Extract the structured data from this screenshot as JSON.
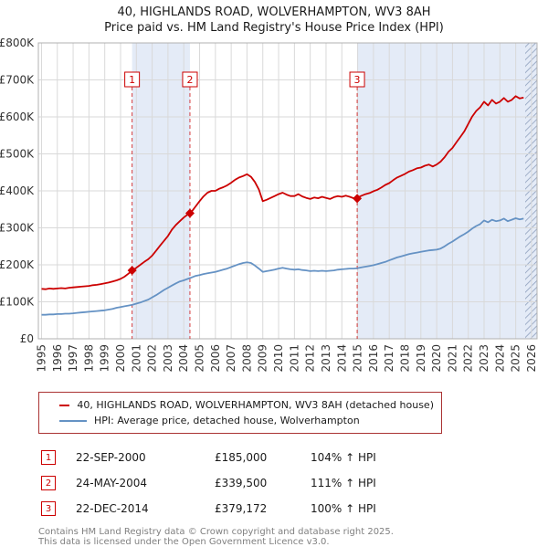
{
  "title": "40, HIGHLANDS ROAD, WOLVERHAMPTON, WV3 8AH",
  "subtitle": "Price paid vs. HM Land Registry's House Price Index (HPI)",
  "chart_data": {
    "type": "line",
    "xlim": [
      1994.8,
      2026.35
    ],
    "ylim": [
      0,
      800
    ],
    "value_unit": "GBP thousands",
    "x_start": 1995.0,
    "x_step": 0.25,
    "xticks": [
      1995,
      1996,
      1997,
      1998,
      1999,
      2000,
      2001,
      2002,
      2003,
      2004,
      2005,
      2006,
      2007,
      2008,
      2009,
      2010,
      2011,
      2012,
      2013,
      2014,
      2015,
      2016,
      2017,
      2018,
      2019,
      2020,
      2021,
      2022,
      2023,
      2024,
      2025,
      2026
    ],
    "yticks": [
      {
        "v": 0,
        "label": "£0"
      },
      {
        "v": 100,
        "label": "£100K"
      },
      {
        "v": 200,
        "label": "£200K"
      },
      {
        "v": 300,
        "label": "£300K"
      },
      {
        "v": 400,
        "label": "£400K"
      },
      {
        "v": 500,
        "label": "£500K"
      },
      {
        "v": 600,
        "label": "£600K"
      },
      {
        "v": 700,
        "label": "£700K"
      },
      {
        "v": 800,
        "label": "£800K"
      }
    ],
    "colors": {
      "price_line": "#cc0000",
      "hpi_line": "#6592c4",
      "shade": "#e4ebf7",
      "grid": "#d9d9d9",
      "border": "#b0b0b0"
    },
    "shaded_regions": [
      [
        2000.73,
        2004.39
      ],
      [
        2014.97,
        2026.35
      ]
    ],
    "hatched_region": [
      2025.6,
      2026.35
    ],
    "series": [
      {
        "name": "40, HIGHLANDS ROAD, WOLVERHAMPTON, WV3 8AH (detached house)",
        "color": "#cc0000",
        "values": [
          135,
          134,
          136,
          135,
          136,
          137,
          136,
          138,
          139,
          140,
          141,
          142,
          143,
          145,
          146,
          148,
          150,
          152,
          155,
          158,
          162,
          168,
          176,
          185,
          192,
          200,
          208,
          215,
          225,
          238,
          252,
          265,
          278,
          295,
          308,
          318,
          328,
          336,
          344,
          358,
          372,
          385,
          395,
          400,
          400,
          406,
          410,
          415,
          422,
          430,
          436,
          440,
          445,
          438,
          424,
          404,
          372,
          376,
          381,
          386,
          391,
          395,
          390,
          386,
          386,
          391,
          385,
          381,
          378,
          382,
          380,
          384,
          381,
          378,
          383,
          386,
          384,
          387,
          384,
          380,
          382,
          387,
          391,
          394,
          399,
          403,
          409,
          416,
          421,
          429,
          436,
          441,
          446,
          452,
          456,
          461,
          463,
          468,
          471,
          466,
          471,
          479,
          491,
          506,
          516,
          531,
          546,
          561,
          581,
          601,
          616,
          626,
          641,
          631,
          646,
          636,
          641,
          651,
          641,
          646,
          656,
          650,
          652
        ]
      },
      {
        "name": "HPI: Average price, detached house, Wolverhampton",
        "color": "#6592c4",
        "values": [
          65,
          65,
          66,
          66,
          67,
          67,
          68,
          68,
          69,
          70,
          71,
          72,
          73,
          74,
          75,
          76,
          77,
          79,
          81,
          84,
          86,
          88,
          90,
          92,
          95,
          98,
          102,
          106,
          112,
          118,
          125,
          132,
          138,
          144,
          150,
          155,
          158,
          162,
          166,
          170,
          172,
          175,
          177,
          179,
          181,
          184,
          187,
          190,
          194,
          198,
          202,
          205,
          207,
          205,
          198,
          190,
          181,
          183,
          185,
          187,
          190,
          192,
          190,
          188,
          187,
          188,
          186,
          185,
          183,
          184,
          183,
          184,
          183,
          184,
          185,
          187,
          188,
          189,
          190,
          190,
          191,
          193,
          195,
          197,
          199,
          202,
          205,
          208,
          212,
          216,
          220,
          223,
          226,
          229,
          231,
          233,
          235,
          237,
          239,
          240,
          241,
          244,
          250,
          257,
          263,
          270,
          277,
          283,
          290,
          298,
          305,
          310,
          320,
          315,
          322,
          318,
          320,
          325,
          318,
          322,
          326,
          323,
          325
        ]
      }
    ],
    "sales": [
      {
        "label": "1",
        "x": 2000.73,
        "value": 185
      },
      {
        "label": "2",
        "x": 2004.39,
        "value": 339.5
      },
      {
        "label": "3",
        "x": 2014.97,
        "value": 379.172
      }
    ]
  },
  "legend": [
    "40, HIGHLANDS ROAD, WOLVERHAMPTON, WV3 8AH (detached house)",
    "HPI: Average price, detached house, Wolverhampton"
  ],
  "transactions": [
    {
      "num": "1",
      "date": "22-SEP-2000",
      "price": "£185,000",
      "hpi": "104% ↑ HPI"
    },
    {
      "num": "2",
      "date": "24-MAY-2004",
      "price": "£339,500",
      "hpi": "111% ↑ HPI"
    },
    {
      "num": "3",
      "date": "22-DEC-2014",
      "price": "£379,172",
      "hpi": "100% ↑ HPI"
    }
  ],
  "footer": [
    "Contains HM Land Registry data © Crown copyright and database right 2025.",
    "This data is licensed under the Open Government Licence v3.0."
  ]
}
